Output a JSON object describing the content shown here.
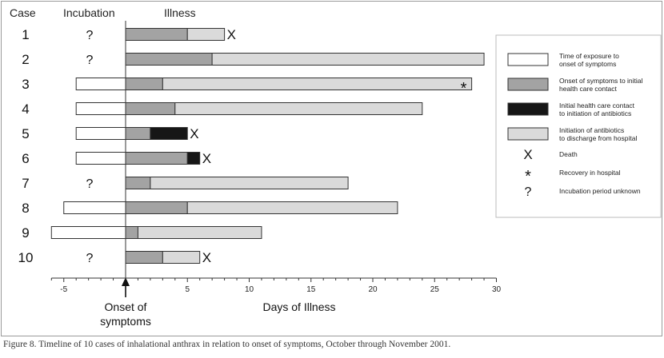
{
  "header": {
    "case": "Case",
    "incubation": "Incubation",
    "illness": "Illness"
  },
  "axis": {
    "title": "Days of Illness",
    "onset_line1": "Onset of",
    "onset_line2": "symptoms"
  },
  "caption": "Figure 8. Timeline of 10 cases of inhalational anthrax in relation to onset of symptoms, October through November  2001.",
  "colors": {
    "exposure": "#ffffff",
    "onset_contact": "#a3a3a3",
    "contact_antibiotics": "#161616",
    "antibiotics_discharge": "#dadada",
    "outline": "#333333"
  },
  "legend": [
    {
      "key": "exposure",
      "line1": "Time of exposure to",
      "line2": "onset of symptoms"
    },
    {
      "key": "onset_contact",
      "line1": "Onset of symptoms to initial",
      "line2": "health care contact"
    },
    {
      "key": "contact_antibiotics",
      "line1": "Initial health care contact",
      "line2": "to initiation of antibiotics"
    },
    {
      "key": "antibiotics_discharge",
      "line1": "Initiation of antibiotics",
      "line2": "to discharge from hospital"
    },
    {
      "symbol": "X",
      "line1": "Death",
      "line2": ""
    },
    {
      "symbol": "*",
      "line1": "Recovery in hospital",
      "line2": ""
    },
    {
      "symbol": "?",
      "line1": "Incubation period unknown",
      "line2": ""
    }
  ],
  "chart_data": {
    "type": "bar",
    "orientation": "horizontal",
    "xlabel": "Days of Illness",
    "xlim": [
      -6,
      30
    ],
    "xticks": [
      -5,
      0,
      5,
      10,
      15,
      20,
      25,
      30
    ],
    "xtick_labels": [
      "-5",
      "",
      "5",
      "10",
      "15",
      "20",
      "25",
      "30"
    ],
    "categories": [
      "1",
      "2",
      "3",
      "4",
      "5",
      "6",
      "7",
      "8",
      "9",
      "10"
    ],
    "cases": [
      {
        "case": "1",
        "incubation_unknown": true,
        "exposure_start": null,
        "onset_to_contact": 5,
        "contact_to_antibiotics": 0,
        "antibiotics_to_end": 3,
        "outcome": "X"
      },
      {
        "case": "2",
        "incubation_unknown": true,
        "exposure_start": null,
        "onset_to_contact": 7,
        "contact_to_antibiotics": 0,
        "antibiotics_to_end": 22,
        "outcome": ""
      },
      {
        "case": "3",
        "incubation_unknown": false,
        "exposure_start": -4,
        "onset_to_contact": 3,
        "contact_to_antibiotics": 0,
        "antibiotics_to_end": 25,
        "outcome": "*"
      },
      {
        "case": "4",
        "incubation_unknown": false,
        "exposure_start": -4,
        "onset_to_contact": 4,
        "contact_to_antibiotics": 0,
        "antibiotics_to_end": 20,
        "outcome": ""
      },
      {
        "case": "5",
        "incubation_unknown": false,
        "exposure_start": -4,
        "onset_to_contact": 2,
        "contact_to_antibiotics": 3,
        "antibiotics_to_end": 0,
        "outcome": "X"
      },
      {
        "case": "6",
        "incubation_unknown": false,
        "exposure_start": -4,
        "onset_to_contact": 5,
        "contact_to_antibiotics": 1,
        "antibiotics_to_end": 0,
        "outcome": "X"
      },
      {
        "case": "7",
        "incubation_unknown": true,
        "exposure_start": null,
        "onset_to_contact": 2,
        "contact_to_antibiotics": 0,
        "antibiotics_to_end": 16,
        "outcome": ""
      },
      {
        "case": "8",
        "incubation_unknown": false,
        "exposure_start": -5,
        "onset_to_contact": 5,
        "contact_to_antibiotics": 0,
        "antibiotics_to_end": 17,
        "outcome": ""
      },
      {
        "case": "9",
        "incubation_unknown": false,
        "exposure_start": -6,
        "onset_to_contact": 1,
        "contact_to_antibiotics": 0,
        "antibiotics_to_end": 10,
        "outcome": ""
      },
      {
        "case": "10",
        "incubation_unknown": true,
        "exposure_start": null,
        "onset_to_contact": 3,
        "contact_to_antibiotics": 0,
        "antibiotics_to_end": 3,
        "outcome": "X"
      }
    ]
  }
}
